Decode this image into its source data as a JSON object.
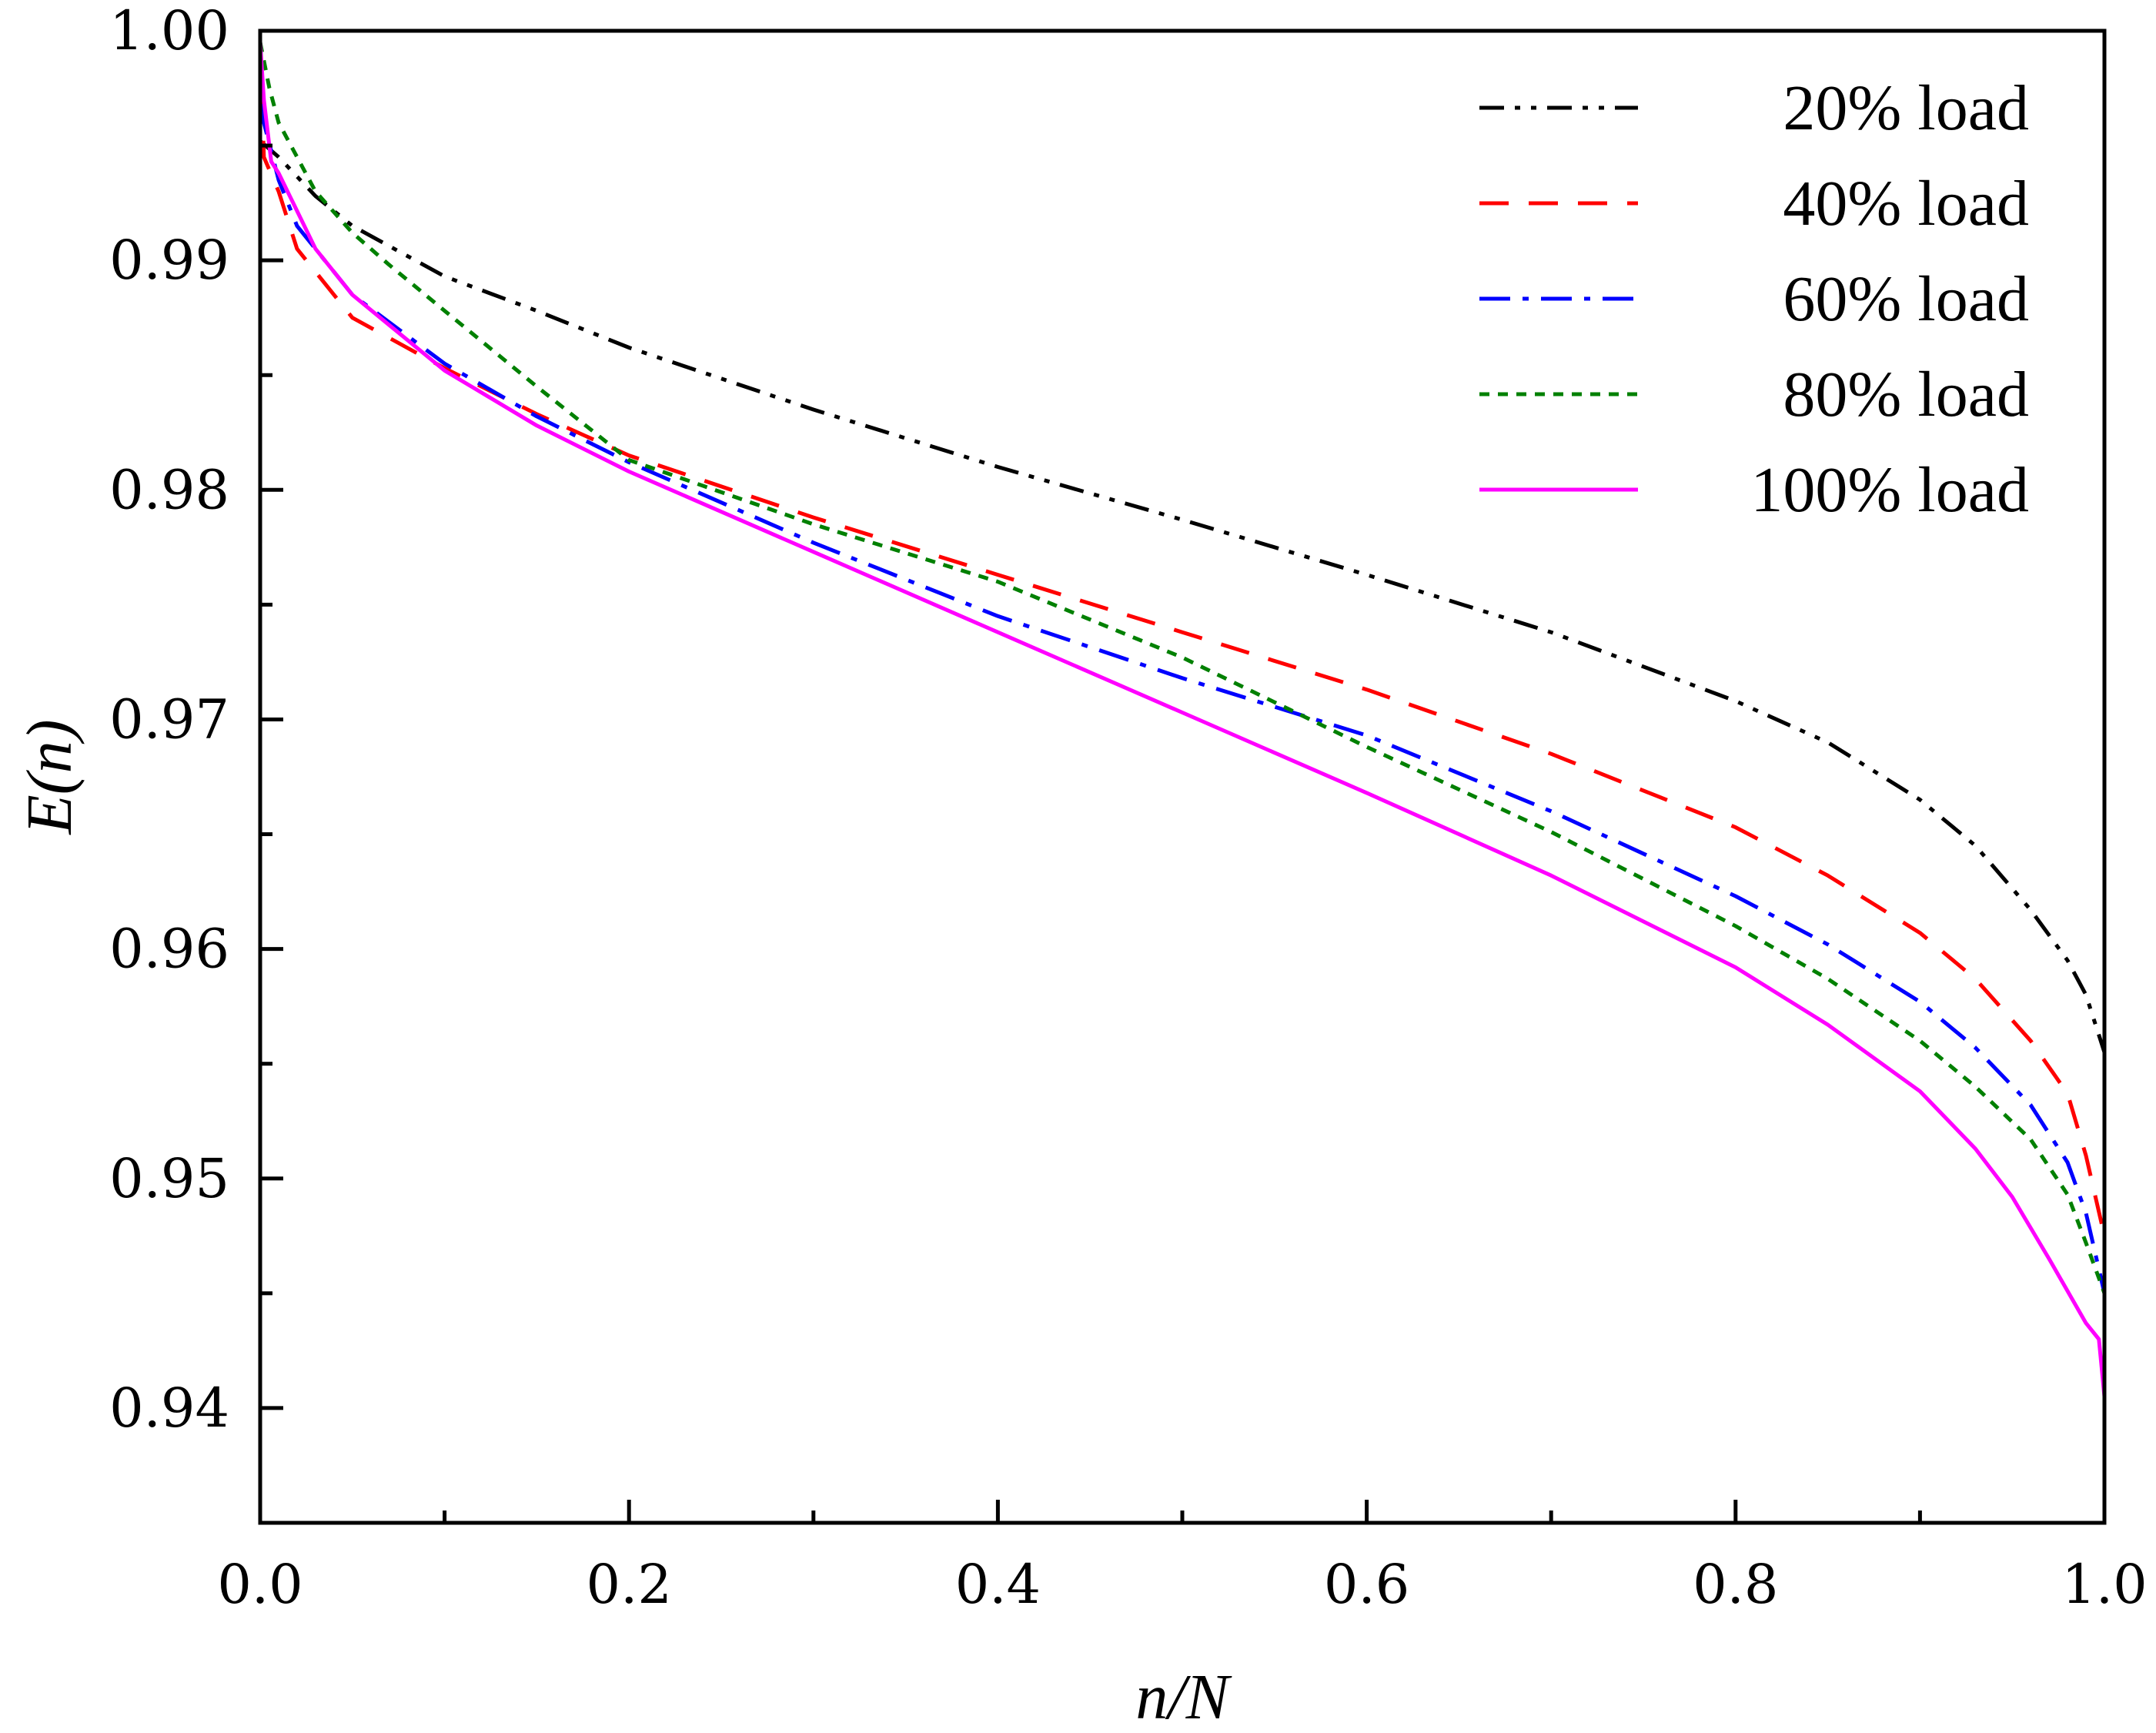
{
  "chart_data": {
    "type": "line",
    "title": "",
    "xlabel": "n/N",
    "ylabel": "E(n)",
    "xlim": [
      0.0,
      1.0
    ],
    "ylim": [
      0.935,
      1.0
    ],
    "x_ticks": [
      0.0,
      0.2,
      0.4,
      0.6,
      0.8,
      1.0
    ],
    "x_tick_labels": [
      "0.0",
      "0.2",
      "0.4",
      "0.6",
      "0.8",
      "1.0"
    ],
    "y_ticks": [
      0.94,
      0.95,
      0.96,
      0.97,
      0.98,
      0.99,
      1.0
    ],
    "y_tick_labels": [
      "0.94",
      "0.95",
      "0.96",
      "0.97",
      "0.98",
      "0.99",
      "1.00"
    ],
    "grid": false,
    "legend_position": "top-right",
    "series": [
      {
        "name": "20% load",
        "color": "#000000",
        "dash": "dash-dot-dot",
        "x": [
          0.0,
          0.01,
          0.03,
          0.05,
          0.1,
          0.15,
          0.2,
          0.3,
          0.4,
          0.5,
          0.6,
          0.7,
          0.8,
          0.85,
          0.9,
          0.93,
          0.96,
          0.98,
          0.99,
          1.0
        ],
        "y": [
          0.9952,
          0.9945,
          0.9928,
          0.9915,
          0.9893,
          0.9878,
          0.9862,
          0.9835,
          0.981,
          0.9787,
          0.9763,
          0.9738,
          0.9708,
          0.969,
          0.9665,
          0.9645,
          0.9617,
          0.9595,
          0.958,
          0.9555
        ]
      },
      {
        "name": "40% load",
        "color": "#ff0000",
        "dash": "dashed",
        "x": [
          0.0,
          0.002,
          0.01,
          0.02,
          0.05,
          0.1,
          0.15,
          0.2,
          0.3,
          0.4,
          0.5,
          0.6,
          0.7,
          0.8,
          0.85,
          0.9,
          0.93,
          0.96,
          0.98,
          0.99,
          1.0
        ],
        "y": [
          0.9995,
          0.9945,
          0.993,
          0.9905,
          0.9875,
          0.9853,
          0.9833,
          0.9815,
          0.9788,
          0.9763,
          0.9738,
          0.9713,
          0.9685,
          0.9653,
          0.9632,
          0.9607,
          0.9587,
          0.956,
          0.9537,
          0.951,
          0.9475
        ]
      },
      {
        "name": "60% load",
        "color": "#0000ff",
        "dash": "dash-dot",
        "x": [
          0.0,
          0.002,
          0.01,
          0.02,
          0.05,
          0.1,
          0.15,
          0.2,
          0.3,
          0.4,
          0.5,
          0.6,
          0.7,
          0.8,
          0.85,
          0.9,
          0.93,
          0.96,
          0.98,
          0.99,
          1.0
        ],
        "y": [
          0.9995,
          0.996,
          0.9935,
          0.9915,
          0.9885,
          0.9855,
          0.9832,
          0.9812,
          0.9777,
          0.9745,
          0.9718,
          0.9693,
          0.966,
          0.9623,
          0.9602,
          0.9577,
          0.9557,
          0.9532,
          0.9507,
          0.9485,
          0.945
        ]
      },
      {
        "name": "80% load",
        "color": "#008000",
        "dash": "dotted",
        "x": [
          0.0,
          0.005,
          0.01,
          0.03,
          0.05,
          0.07,
          0.1,
          0.15,
          0.2,
          0.3,
          0.4,
          0.5,
          0.6,
          0.7,
          0.8,
          0.85,
          0.9,
          0.93,
          0.96,
          0.98,
          0.99,
          1.0
        ],
        "y": [
          0.9995,
          0.9975,
          0.996,
          0.993,
          0.9912,
          0.9898,
          0.9878,
          0.9845,
          0.9813,
          0.9785,
          0.976,
          0.9727,
          0.9688,
          0.9651,
          0.961,
          0.9587,
          0.956,
          0.954,
          0.9517,
          0.9493,
          0.9472,
          0.945
        ]
      },
      {
        "name": "100% load",
        "color": "#ff00ff",
        "dash": "solid",
        "x": [
          0.0,
          0.002,
          0.006,
          0.01,
          0.03,
          0.05,
          0.1,
          0.15,
          0.2,
          0.3,
          0.4,
          0.5,
          0.6,
          0.7,
          0.8,
          0.85,
          0.9,
          0.93,
          0.95,
          0.97,
          0.99,
          0.997,
          1.0
        ],
        "y": [
          0.9995,
          0.997,
          0.9943,
          0.9938,
          0.9905,
          0.9885,
          0.9852,
          0.9828,
          0.9808,
          0.9773,
          0.9738,
          0.9703,
          0.9668,
          0.9632,
          0.9592,
          0.9567,
          0.9538,
          0.9513,
          0.9492,
          0.9465,
          0.9437,
          0.943,
          0.9405
        ]
      }
    ]
  }
}
